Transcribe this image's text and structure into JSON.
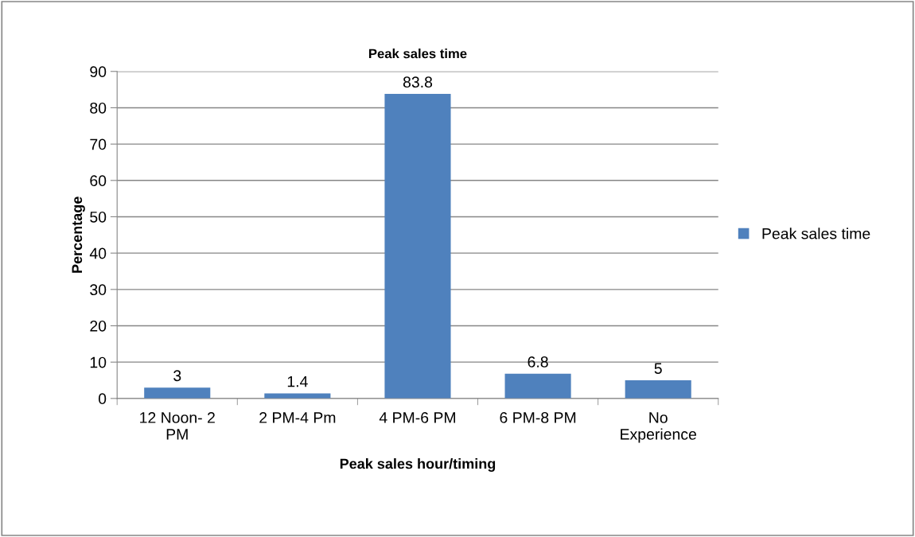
{
  "chart_data": {
    "type": "bar",
    "title": "Peak sales time",
    "xlabel": "Peak sales hour/timing",
    "ylabel": "Percentage",
    "categories": [
      "12 Noon- 2\nPM",
      "2 PM-4 Pm",
      "4 PM-6 PM",
      "6 PM-8 PM",
      "No\nExperience"
    ],
    "series": [
      {
        "name": "Peak sales time",
        "color": "#4f81bd",
        "values": [
          3,
          1.4,
          83.8,
          6.8,
          5
        ]
      }
    ],
    "ylim": [
      0,
      90
    ],
    "yticks": [
      0,
      10,
      20,
      30,
      40,
      50,
      60,
      70,
      80,
      90
    ],
    "grid": "y",
    "legend": "right",
    "data_labels": true
  }
}
